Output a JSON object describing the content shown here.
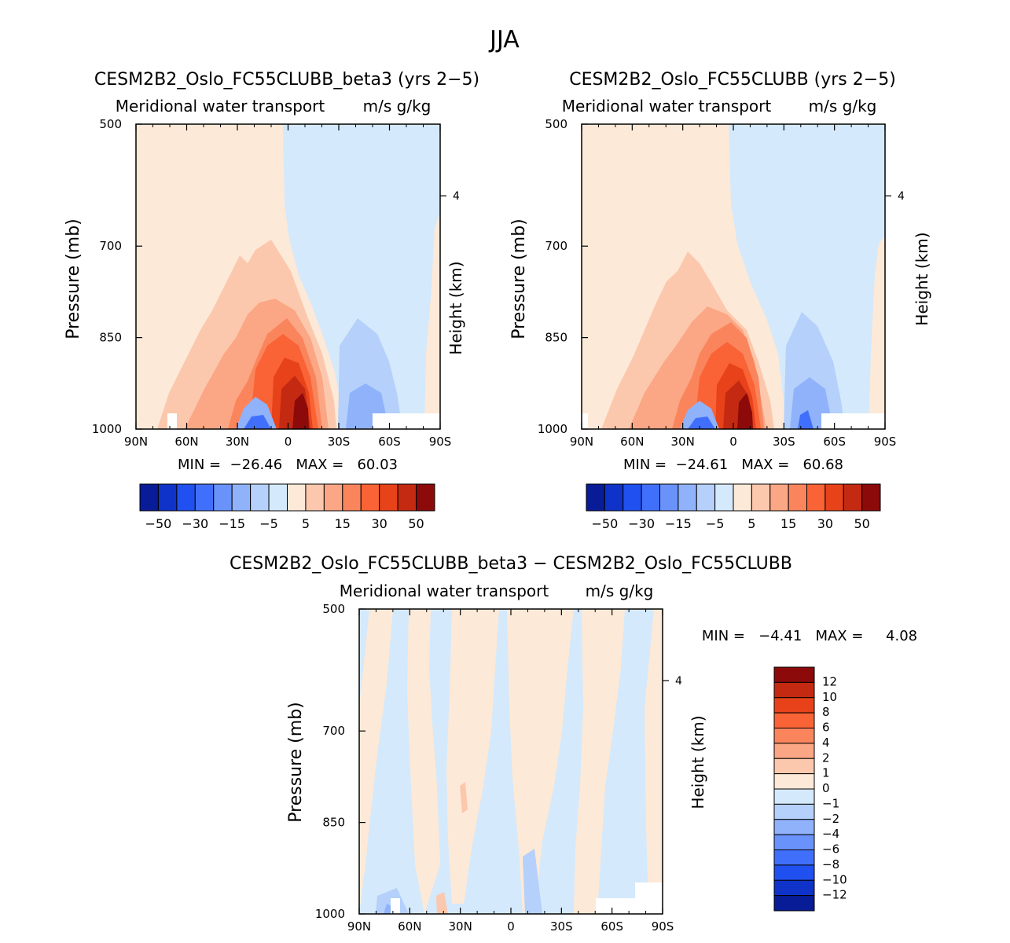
{
  "figure_title": "JJA",
  "palette": {
    "pos": [
      "#fde9d8",
      "#fcc8ad",
      "#fba684",
      "#fa855c",
      "#f96335",
      "#e8421a",
      "#c42a12",
      "#8c0a0a"
    ],
    "neg": [
      "#d4e9fb",
      "#b4d0fb",
      "#8fb2fb",
      "#6992fb",
      "#4070fb",
      "#2150f0",
      "#0f33c8",
      "#071c96"
    ]
  },
  "chart_data": [
    {
      "type": "contour",
      "title": "CESM2B2_Oslo_FC55CLUBB_beta3 (yrs 2−5)",
      "subtitle": "Meridional water transport",
      "units": "m/s g/kg",
      "xlabel": "",
      "ylabel": "Pressure (mb)",
      "ylabel_right": "Height (km)",
      "x_ticks": [
        "90N",
        "60N",
        "30N",
        "0",
        "30S",
        "60S",
        "90S"
      ],
      "y_ticks": [
        "500",
        "700",
        "850",
        "1000"
      ],
      "right_ticks": [
        "4"
      ],
      "xlim": [
        90,
        -90
      ],
      "ylim": [
        1000,
        500
      ],
      "min_label": "MIN =  −26.46   MAX =   60.03",
      "min": -26.46,
      "max": 60.03,
      "colorbar_levels": [
        -50,
        -40,
        -30,
        -20,
        -15,
        -10,
        -5,
        0,
        5,
        10,
        15,
        20,
        30,
        40,
        50
      ],
      "colorbar_labels": [
        "−50",
        "−30",
        "−15",
        "−5",
        "5",
        "15",
        "30",
        "50"
      ]
    },
    {
      "type": "contour",
      "title": "CESM2B2_Oslo_FC55CLUBB (yrs 2−5)",
      "subtitle": "Meridional water transport",
      "units": "m/s g/kg",
      "xlabel": "",
      "ylabel": "Pressure (mb)",
      "ylabel_right": "Height (km)",
      "x_ticks": [
        "90N",
        "60N",
        "30N",
        "0",
        "30S",
        "60S",
        "90S"
      ],
      "y_ticks": [
        "500",
        "700",
        "850",
        "1000"
      ],
      "right_ticks": [
        "4"
      ],
      "xlim": [
        90,
        -90
      ],
      "ylim": [
        1000,
        500
      ],
      "min_label": "MIN =  −24.61   MAX =   60.68",
      "min": -24.61,
      "max": 60.68,
      "colorbar_levels": [
        -50,
        -40,
        -30,
        -20,
        -15,
        -10,
        -5,
        0,
        5,
        10,
        15,
        20,
        30,
        40,
        50
      ],
      "colorbar_labels": [
        "−50",
        "−30",
        "−15",
        "−5",
        "5",
        "15",
        "30",
        "50"
      ]
    },
    {
      "type": "contour",
      "title": "CESM2B2_Oslo_FC55CLUBB_beta3 − CESM2B2_Oslo_FC55CLUBB",
      "subtitle": "Meridional water transport",
      "units": "m/s g/kg",
      "xlabel": "",
      "ylabel": "Pressure (mb)",
      "ylabel_right": "Height (km)",
      "x_ticks": [
        "90N",
        "60N",
        "30N",
        "0",
        "30S",
        "60S",
        "90S"
      ],
      "y_ticks": [
        "500",
        "700",
        "850",
        "1000"
      ],
      "right_ticks": [
        "4"
      ],
      "xlim": [
        90,
        -90
      ],
      "ylim": [
        1000,
        500
      ],
      "min_label": "MIN =   −4.41   MAX =     4.08",
      "min": -4.41,
      "max": 4.08,
      "colorbar_levels": [
        -12,
        -10,
        -8,
        -6,
        -4,
        -2,
        -1,
        0,
        1,
        2,
        4,
        6,
        8,
        10,
        12
      ],
      "colorbar_labels": [
        "12",
        "10",
        "8",
        "6",
        "4",
        "2",
        "1",
        "0",
        "−1",
        "−2",
        "−4",
        "−6",
        "−8",
        "−10",
        "−12"
      ]
    }
  ]
}
